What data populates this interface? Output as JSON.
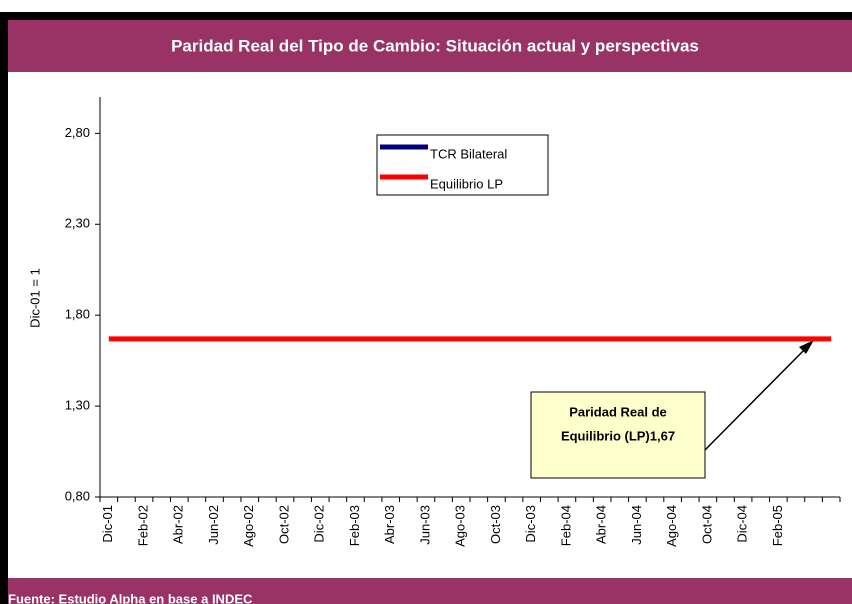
{
  "chart_data": {
    "type": "line",
    "title": "Paridad Real del Tipo de Cambio: Situación actual y perspectivas",
    "y_label": "Dic-01 = 1",
    "categories": [
      "Dic-01",
      null,
      "Feb-02",
      null,
      "Abr-02",
      null,
      "Jun-02",
      null,
      "Ago-02",
      null,
      "Oct-02",
      null,
      "Dic-02",
      null,
      "Feb-03",
      null,
      "Abr-03",
      null,
      "Jun-03",
      null,
      "Ago-03",
      null,
      "Oct-03",
      null,
      "Dic-03",
      null,
      "Feb-04",
      null,
      "Abr-04",
      null,
      "Jun-04",
      null,
      "Ago-04",
      null,
      "Oct-04",
      null,
      "Dic-04",
      null,
      "Feb-05",
      null,
      null,
      null
    ],
    "series": [
      {
        "name": "TCR Bilateral",
        "color": "#000080",
        "values": [
          null,
          null,
          null,
          null,
          null,
          null,
          null,
          null,
          null,
          null,
          null,
          null,
          null,
          null,
          null,
          null,
          null,
          null,
          null,
          null,
          null,
          null,
          null,
          null,
          null,
          null,
          null,
          null,
          null,
          null,
          null,
          null,
          null,
          null,
          null,
          null,
          null,
          null,
          null,
          null,
          null,
          null
        ]
      },
      {
        "name": "Equilibrio LP",
        "color": "#ff0000",
        "values": [
          1.67,
          1.67,
          1.67,
          1.67,
          1.67,
          1.67,
          1.67,
          1.67,
          1.67,
          1.67,
          1.67,
          1.67,
          1.67,
          1.67,
          1.67,
          1.67,
          1.67,
          1.67,
          1.67,
          1.67,
          1.67,
          1.67,
          1.67,
          1.67,
          1.67,
          1.67,
          1.67,
          1.67,
          1.67,
          1.67,
          1.67,
          1.67,
          1.67,
          1.67,
          1.67,
          1.67,
          1.67,
          1.67,
          1.67,
          1.67,
          1.67,
          1.67
        ]
      }
    ],
    "ylim": [
      0.8,
      3.0
    ],
    "yticks": [
      {
        "value": 0.8,
        "label": "0,80"
      },
      {
        "value": 1.3,
        "label": "1,30"
      },
      {
        "value": 1.8,
        "label": "1,80"
      },
      {
        "value": 2.3,
        "label": "2,30"
      },
      {
        "value": 2.8,
        "label": "2,80"
      }
    ],
    "annotation": [
      "Paridad Real de",
      "Equilibrio (LP)1,67"
    ],
    "source": "Fuente: Estudio Alpha en base a INDEC"
  }
}
